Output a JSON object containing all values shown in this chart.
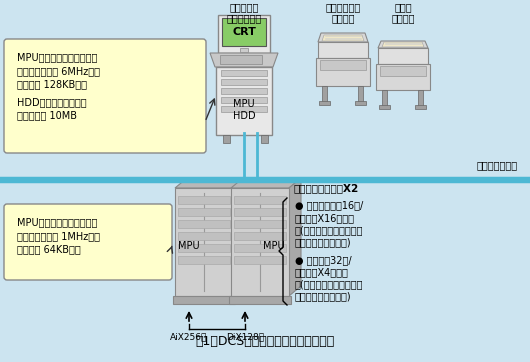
{
  "bg_color": "#cce4f0",
  "title": "図1　DCSによるデータロガー構成例",
  "operator_label": "オペレータ\nステーション",
  "crt_label": "CRT",
  "mpu_hdd_label": "MPU\nHDD",
  "message_printer_label": "メッセージ用\nプリンタ",
  "slip_printer_label": "帳票用\nプリンタ",
  "control_bus_label": "制御用通信バス",
  "info_box1_line1": "MPU：マイクロプロセッサ",
  "info_box1_line2": "　クロック速度 6MHz程度",
  "info_box1_line3": "　メモリ 128KB程度",
  "info_box1_line4": "HDD：ハードディスク",
  "info_box1_line5": "　　　容量 10MB",
  "control_station_label": "制御ステーションX2",
  "info_box2_line1": "MPU：マイクロプロセッサ",
  "info_box2_line2": "　クロック速度 1MHz程度",
  "info_box2_line3": "　メモリ 64KB程度",
  "mpu_label": "MPU",
  "bullet1_line1": "● アナログ入力16点/",
  "bullet1_line2": "　カードX16カード",
  "bullet1_line3": "　(アナログ入力はすべて",
  "bullet1_line4": "　アイソレーション)",
  "bullet2_line1": "● 接点入力32点/",
  "bullet2_line2": "　カードX4カード",
  "bullet2_line3": "　(デジタル入力はすべて",
  "bullet2_line4": "　バッファリレー付)",
  "ai_label": "AiX256点",
  "di_label": "DiX128点",
  "yellow_box_color": "#ffffcc",
  "separator_color": "#4db8d4",
  "bus_line_color": "#4db8d4",
  "white": "#ffffff",
  "light_gray": "#e8e8e8",
  "mid_gray": "#c8c8c8",
  "dark_gray": "#a0a0a0",
  "cabinet_front": "#d0d0d0",
  "cabinet_top": "#b8b8b8",
  "cabinet_side": "#a8a8a8",
  "green_screen": "#88cc66"
}
